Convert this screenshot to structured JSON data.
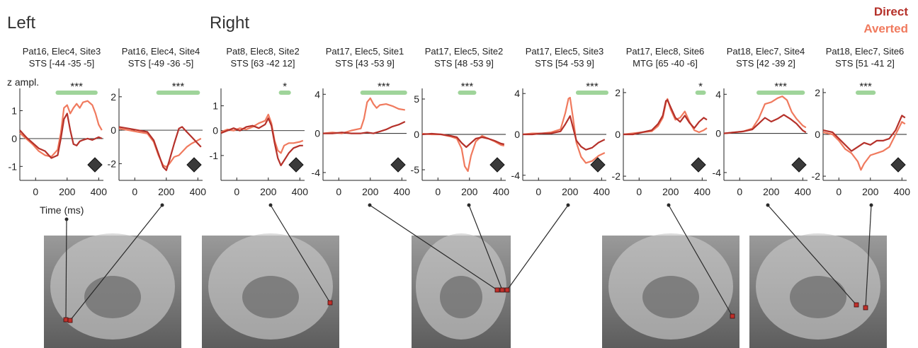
{
  "figure": {
    "left_label": "Left",
    "right_label": "Right",
    "legend": [
      {
        "label": "Direct",
        "color": "#b5312a"
      },
      {
        "label": "Averted",
        "color": "#f07a5e"
      }
    ],
    "y_axis_title": "z ampl.",
    "x_axis_title": "Time (ms)",
    "significance_bar_color": "#9fd49a",
    "marker_color": "#3a3a3a"
  },
  "chart_data": [
    {
      "type": "line",
      "title": "Pat16, Elec4, Site3",
      "subtitle": "STS [-44 -35 -5]",
      "significance": "***",
      "sig_range": [
        140,
        380
      ],
      "xlim": [
        -100,
        430
      ],
      "ylim": [
        -1.5,
        1.8
      ],
      "yticks": [
        -1,
        0,
        1
      ],
      "xticks": [
        0,
        200,
        400
      ],
      "series": [
        {
          "name": "Direct",
          "x": [
            -100,
            -60,
            -20,
            20,
            60,
            100,
            140,
            160,
            180,
            200,
            220,
            240,
            260,
            280,
            300,
            330,
            360,
            400,
            420
          ],
          "y": [
            0.3,
            0.05,
            -0.15,
            -0.35,
            -0.45,
            -0.7,
            -0.6,
            0,
            0.7,
            0.9,
            0.3,
            -0.2,
            -0.25,
            -0.1,
            -0.05,
            0,
            -0.05,
            0.05,
            0
          ]
        },
        {
          "name": "Averted",
          "x": [
            -100,
            -60,
            -20,
            20,
            60,
            100,
            140,
            160,
            180,
            200,
            220,
            240,
            260,
            280,
            300,
            330,
            360,
            380,
            400,
            420
          ],
          "y": [
            0.2,
            0,
            -0.2,
            -0.45,
            -0.6,
            -0.65,
            -0.4,
            0.2,
            1.1,
            1.2,
            0.9,
            1.1,
            1.25,
            1.1,
            1.3,
            1.35,
            1.2,
            0.9,
            0.5,
            0.3
          ]
        }
      ]
    },
    {
      "type": "line",
      "title": "Pat16, Elec4, Site4",
      "subtitle": "STS [-49 -36 -5]",
      "significance": "***",
      "sig_range": [
        150,
        400
      ],
      "xlim": [
        -100,
        430
      ],
      "ylim": [
        -3,
        2.5
      ],
      "yticks": [
        -2,
        0,
        2
      ],
      "xticks": [
        0,
        200,
        400
      ],
      "series": [
        {
          "name": "Direct",
          "x": [
            -100,
            -40,
            20,
            80,
            120,
            150,
            180,
            200,
            220,
            250,
            280,
            300,
            330,
            360,
            400,
            420
          ],
          "y": [
            0.2,
            0.1,
            0,
            -0.1,
            -0.6,
            -1.4,
            -2.2,
            -2.4,
            -1.8,
            -0.8,
            0.1,
            0.2,
            -0.1,
            -0.4,
            -0.8,
            -1
          ]
        },
        {
          "name": "Averted",
          "x": [
            -100,
            -40,
            20,
            80,
            120,
            150,
            180,
            200,
            220,
            250,
            280,
            300,
            330,
            360,
            400,
            420
          ],
          "y": [
            0.1,
            0,
            -0.1,
            -0.2,
            -0.7,
            -1.5,
            -2.1,
            -2.2,
            -2,
            -1.6,
            -1.5,
            -1.3,
            -1,
            -0.8,
            -0.6,
            -0.5
          ]
        }
      ]
    },
    {
      "type": "line",
      "title": "Pat8, Elec8, Site2",
      "subtitle": "STS [63 -42 12]",
      "significance": "*",
      "sig_range": [
        280,
        330
      ],
      "xlim": [
        -100,
        430
      ],
      "ylim": [
        -2,
        1.7
      ],
      "yticks": [
        -1,
        0,
        1
      ],
      "xticks": [
        0,
        200,
        400
      ],
      "series": [
        {
          "name": "Direct",
          "x": [
            -100,
            -60,
            -20,
            20,
            60,
            100,
            140,
            180,
            200,
            220,
            240,
            260,
            280,
            300,
            330,
            360,
            400,
            420
          ],
          "y": [
            -0.1,
            0,
            0.1,
            0,
            0.15,
            0.2,
            0.1,
            0.25,
            0.5,
            0.2,
            -0.5,
            -1.1,
            -1.4,
            -1.2,
            -0.9,
            -0.7,
            -0.6,
            -0.6
          ]
        },
        {
          "name": "Averted",
          "x": [
            -100,
            -60,
            -20,
            20,
            60,
            100,
            140,
            180,
            200,
            220,
            240,
            260,
            280,
            300,
            330,
            360,
            400,
            420
          ],
          "y": [
            -0.05,
            0.05,
            0,
            0.1,
            0.05,
            0.15,
            0.3,
            0.4,
            0.65,
            0.3,
            -0.4,
            -0.8,
            -0.9,
            -0.6,
            -0.5,
            -0.5,
            -0.45,
            -0.4
          ]
        }
      ]
    },
    {
      "type": "line",
      "title": "Pat17, Elec5, Site1",
      "subtitle": "STS [43 -53 9]",
      "significance": "***",
      "sig_range": [
        150,
        420
      ],
      "xlim": [
        -100,
        430
      ],
      "ylim": [
        -4.8,
        4.6
      ],
      "yticks": [
        -4,
        0,
        4
      ],
      "xticks": [
        0,
        200,
        400
      ],
      "series": [
        {
          "name": "Direct",
          "x": [
            -100,
            -40,
            20,
            80,
            140,
            180,
            220,
            260,
            300,
            340,
            380,
            420
          ],
          "y": [
            0,
            0,
            0.1,
            0,
            0,
            0.1,
            0,
            0.2,
            0.4,
            0.7,
            0.9,
            1.2
          ]
        },
        {
          "name": "Averted",
          "x": [
            -100,
            -40,
            20,
            80,
            140,
            160,
            180,
            200,
            220,
            240,
            260,
            300,
            340,
            380,
            420
          ],
          "y": [
            0,
            0.1,
            0,
            0.3,
            0.5,
            1.5,
            3.2,
            3.6,
            3.0,
            2.6,
            2.9,
            3,
            2.8,
            2.5,
            2.4
          ]
        }
      ]
    },
    {
      "type": "line",
      "title": "Pat17, Elec5, Site2",
      "subtitle": "STS [48 -53 9]",
      "significance": "***",
      "sig_range": [
        140,
        230
      ],
      "xlim": [
        -100,
        430
      ],
      "ylim": [
        -6.5,
        6.5
      ],
      "yticks": [
        -5,
        0,
        5
      ],
      "xticks": [
        0,
        200,
        400
      ],
      "series": [
        {
          "name": "Direct",
          "x": [
            -100,
            -40,
            20,
            80,
            120,
            150,
            180,
            210,
            240,
            280,
            320,
            360,
            400,
            420
          ],
          "y": [
            0,
            0.1,
            0,
            -0.2,
            -0.4,
            -1.2,
            -1.8,
            -1.2,
            -0.6,
            -0.4,
            -0.6,
            -0.9,
            -1.3,
            -1.4
          ]
        },
        {
          "name": "Averted",
          "x": [
            -100,
            -40,
            20,
            80,
            120,
            150,
            170,
            190,
            210,
            240,
            280,
            320,
            360,
            400,
            420
          ],
          "y": [
            0.1,
            0,
            0,
            -0.3,
            -0.6,
            -2,
            -4.5,
            -5.2,
            -3,
            -1,
            -0.2,
            -0.6,
            -1,
            -1.5,
            -1.6
          ]
        }
      ]
    },
    {
      "type": "line",
      "title": "Pat17, Elec5, Site3",
      "subtitle": "STS [54 -53 9]",
      "significance": "***",
      "sig_range": [
        250,
        430
      ],
      "xlim": [
        -100,
        430
      ],
      "ylim": [
        -4.5,
        4.5
      ],
      "yticks": [
        -4,
        0,
        4
      ],
      "xticks": [
        0,
        200,
        400
      ],
      "series": [
        {
          "name": "Direct",
          "x": [
            -100,
            -40,
            20,
            80,
            140,
            170,
            200,
            220,
            240,
            270,
            300,
            340,
            380,
            420
          ],
          "y": [
            0,
            0,
            0.1,
            0.1,
            0.3,
            1,
            1.8,
            0.6,
            -0.6,
            -1.2,
            -1.5,
            -1.3,
            -0.8,
            -0.5
          ]
        },
        {
          "name": "Averted",
          "x": [
            -100,
            -40,
            20,
            80,
            140,
            170,
            190,
            200,
            220,
            240,
            270,
            300,
            340,
            380,
            420
          ],
          "y": [
            0,
            0.1,
            0.1,
            0.2,
            0.5,
            2.1,
            3.5,
            3.6,
            1.5,
            -0.8,
            -2.2,
            -2.8,
            -2.6,
            -2.1,
            -1.8
          ]
        }
      ]
    },
    {
      "type": "line",
      "title": "Pat17, Elec8, Site6",
      "subtitle": "MTG [65 -40 -6]",
      "significance": "*",
      "sig_range": [
        370,
        410
      ],
      "xlim": [
        -100,
        430
      ],
      "ylim": [
        -2.2,
        2.2
      ],
      "yticks": [
        -2,
        0,
        2
      ],
      "xticks": [
        0,
        200,
        400
      ],
      "series": [
        {
          "name": "Direct",
          "x": [
            -100,
            -40,
            20,
            80,
            120,
            150,
            170,
            180,
            200,
            230,
            260,
            290,
            320,
            350,
            380,
            410,
            430
          ],
          "y": [
            0,
            0,
            0.1,
            0.2,
            0.5,
            0.9,
            1.6,
            1.65,
            1.3,
            0.8,
            0.6,
            0.9,
            0.55,
            0.3,
            0.6,
            0.8,
            0.7
          ]
        },
        {
          "name": "Averted",
          "x": [
            -100,
            -40,
            20,
            80,
            120,
            150,
            170,
            180,
            200,
            230,
            260,
            290,
            320,
            350,
            380,
            410,
            430
          ],
          "y": [
            0,
            0.05,
            0.1,
            0.15,
            0.4,
            0.8,
            1.5,
            1.7,
            1.2,
            0.7,
            0.8,
            1.1,
            0.6,
            0.2,
            0.1,
            0.2,
            0.3
          ]
        }
      ]
    },
    {
      "type": "line",
      "title": "Pat18, Elec7, Site4",
      "subtitle": "STS [42 -39 2]",
      "significance": "***",
      "sig_range": [
        120,
        400
      ],
      "xlim": [
        -100,
        430
      ],
      "ylim": [
        -4.8,
        4.6
      ],
      "yticks": [
        -4,
        0,
        4
      ],
      "xticks": [
        0,
        200,
        400
      ],
      "series": [
        {
          "name": "Direct",
          "x": [
            -100,
            -40,
            20,
            80,
            120,
            160,
            200,
            240,
            280,
            320,
            360,
            400,
            420
          ],
          "y": [
            0,
            0.1,
            0.2,
            0.4,
            1,
            1.6,
            1.2,
            1.5,
            1.9,
            1.5,
            1,
            0.3,
            0.1
          ]
        },
        {
          "name": "Averted",
          "x": [
            -100,
            -40,
            20,
            80,
            120,
            160,
            200,
            240,
            270,
            300,
            330,
            360,
            400,
            420
          ],
          "y": [
            0,
            0.1,
            0.2,
            0.5,
            1.5,
            3,
            3.2,
            3.6,
            3.8,
            3.4,
            2.2,
            1.5,
            0.8,
            0.6
          ]
        }
      ]
    },
    {
      "type": "line",
      "title": "Pat18, Elec7, Site6",
      "subtitle": "STS [51 -41 2]",
      "significance": "***",
      "sig_range": [
        120,
        220
      ],
      "xlim": [
        -100,
        430
      ],
      "ylim": [
        -2.2,
        2.2
      ],
      "yticks": [
        -2,
        0,
        2
      ],
      "xticks": [
        0,
        200,
        400
      ],
      "series": [
        {
          "name": "Direct",
          "x": [
            -100,
            -40,
            0,
            40,
            80,
            120,
            160,
            200,
            240,
            280,
            320,
            360,
            400,
            420
          ],
          "y": [
            0.2,
            0.1,
            -0.2,
            -0.5,
            -0.8,
            -0.6,
            -0.4,
            -0.5,
            -0.3,
            -0.3,
            -0.2,
            0.2,
            0.9,
            0.8
          ]
        },
        {
          "name": "Averted",
          "x": [
            -100,
            -40,
            0,
            40,
            80,
            120,
            140,
            160,
            200,
            240,
            280,
            320,
            360,
            400,
            420
          ],
          "y": [
            0.1,
            0,
            -0.3,
            -0.7,
            -0.9,
            -1.3,
            -1.7,
            -1.4,
            -1,
            -0.9,
            -0.8,
            -0.6,
            0,
            0.6,
            0.5
          ]
        }
      ]
    }
  ]
}
